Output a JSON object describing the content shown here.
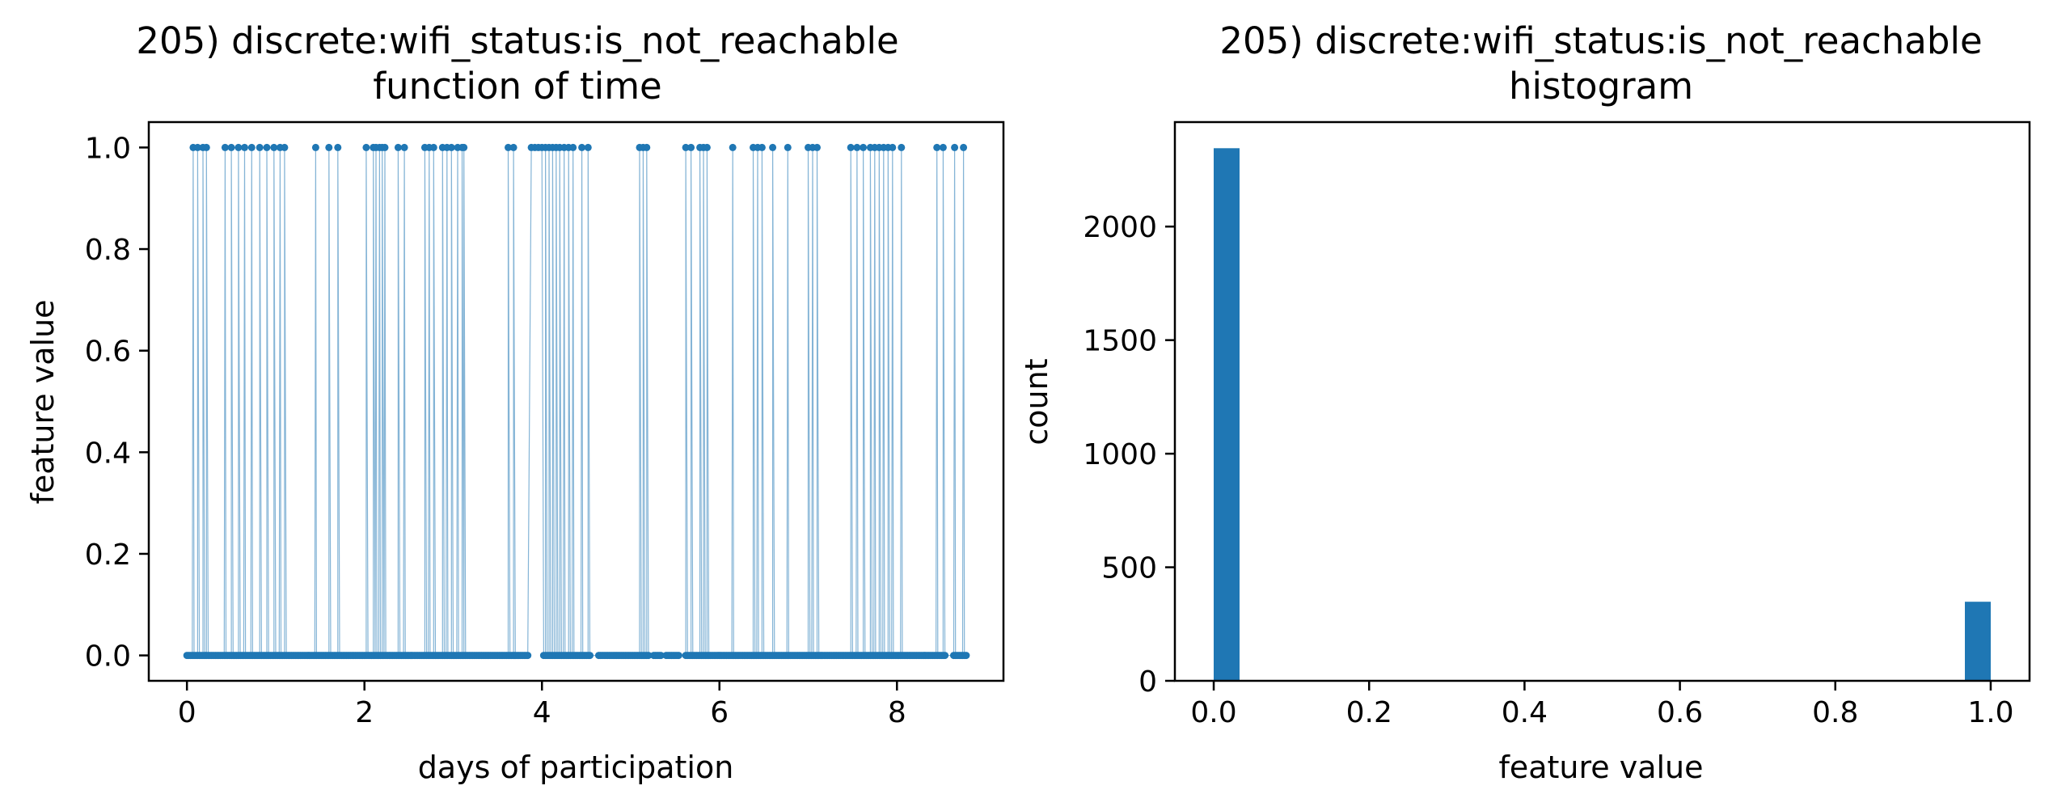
{
  "chart_data": [
    {
      "type": "scatter",
      "title": "205) discrete:wifi_status:is_not_reachable",
      "subtitle": "function of time",
      "xlabel": "days of participation",
      "ylabel": "feature value",
      "xlim": [
        -0.43,
        9.2
      ],
      "ylim": [
        -0.05,
        1.05
      ],
      "xticks": [
        0,
        2,
        4,
        6,
        8
      ],
      "yticks": [
        0.0,
        0.2,
        0.4,
        0.6,
        0.8,
        1.0
      ],
      "xtick_labels": [
        "0",
        "2",
        "4",
        "6",
        "8"
      ],
      "ytick_labels": [
        "0.0",
        "0.2",
        "0.4",
        "0.6",
        "0.8",
        "1.0"
      ],
      "grid": false,
      "color": "#1f77b4",
      "x_range": [
        0.0,
        8.78
      ],
      "one_x": [
        0.07,
        0.12,
        0.18,
        0.22,
        0.43,
        0.5,
        0.58,
        0.65,
        0.73,
        0.82,
        0.9,
        0.98,
        1.05,
        1.1,
        1.45,
        1.6,
        1.7,
        2.02,
        2.1,
        2.13,
        2.17,
        2.2,
        2.23,
        2.38,
        2.45,
        2.68,
        2.73,
        2.78,
        2.88,
        2.93,
        2.98,
        3.05,
        3.1,
        3.12,
        3.62,
        3.68,
        3.88,
        3.92,
        3.96,
        4.0,
        4.04,
        4.08,
        4.12,
        4.16,
        4.2,
        4.25,
        4.3,
        4.35,
        4.45,
        4.52,
        5.1,
        5.14,
        5.18,
        5.62,
        5.68,
        5.78,
        5.82,
        5.86,
        6.15,
        6.38,
        6.43,
        6.48,
        6.6,
        6.77,
        7.0,
        7.05,
        7.1,
        7.48,
        7.55,
        7.62,
        7.7,
        7.75,
        7.8,
        7.85,
        7.9,
        7.95,
        8.05,
        8.45,
        8.52,
        8.65,
        8.75
      ],
      "zero_gaps": [
        [
          3.85,
          4.02
        ],
        [
          4.55,
          4.62
        ],
        [
          5.2,
          5.25
        ],
        [
          5.35,
          5.38
        ],
        [
          5.55,
          5.6
        ],
        [
          8.55,
          8.62
        ]
      ]
    },
    {
      "type": "bar",
      "title": "205) discrete:wifi_status:is_not_reachable",
      "subtitle": "histogram",
      "xlabel": "feature value",
      "ylabel": "count",
      "xlim": [
        -0.05,
        1.05
      ],
      "ylim": [
        0,
        2460
      ],
      "xticks": [
        0.0,
        0.2,
        0.4,
        0.6,
        0.8,
        1.0
      ],
      "yticks": [
        0,
        500,
        1000,
        1500,
        2000
      ],
      "xtick_labels": [
        "0.0",
        "0.2",
        "0.4",
        "0.6",
        "0.8",
        "1.0"
      ],
      "ytick_labels": [
        "0",
        "500",
        "1000",
        "1500",
        "2000"
      ],
      "grid": false,
      "color": "#1f77b4",
      "bins": [
        {
          "x0": 0.0,
          "x1": 0.0333,
          "count": 2345
        },
        {
          "x0": 0.9667,
          "x1": 1.0,
          "count": 348
        }
      ]
    }
  ]
}
